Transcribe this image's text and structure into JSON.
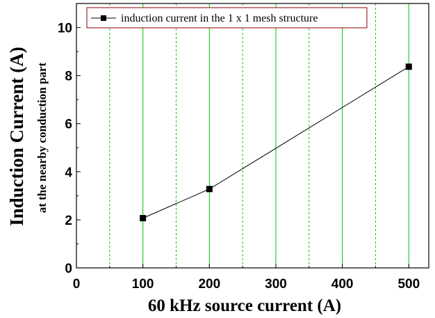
{
  "chart_data": {
    "type": "line",
    "title": "",
    "xlabel": "60 kHz source current (A)",
    "ylabel": "Induction Current (A)",
    "ylabel_sub": "at the nearby conduction part",
    "xlim": [
      0,
      530
    ],
    "ylim": [
      0,
      11
    ],
    "x_ticks": [
      0,
      100,
      200,
      300,
      400,
      500
    ],
    "x_tick_labels": [
      "0",
      "100",
      "200",
      "300",
      "400",
      "500"
    ],
    "y_ticks": [
      0,
      2,
      4,
      6,
      8,
      10
    ],
    "y_tick_labels": [
      "0",
      "2",
      "4",
      "6",
      "8",
      "10"
    ],
    "x_grid_major": [
      100,
      200,
      300,
      400,
      500
    ],
    "x_grid_minor": [
      50,
      150,
      250,
      350,
      450
    ],
    "grid": "vertical",
    "legend_position": "top-left",
    "series": [
      {
        "name": "induction current in the 1 x 1 mesh structure",
        "x": [
          100,
          200,
          500
        ],
        "y": [
          2.07,
          3.28,
          8.37
        ],
        "marker": "square",
        "color": "#000000"
      }
    ]
  },
  "colors": {
    "frame": "#000000",
    "grid": "#00c800",
    "legend_border": "#8b0000"
  }
}
